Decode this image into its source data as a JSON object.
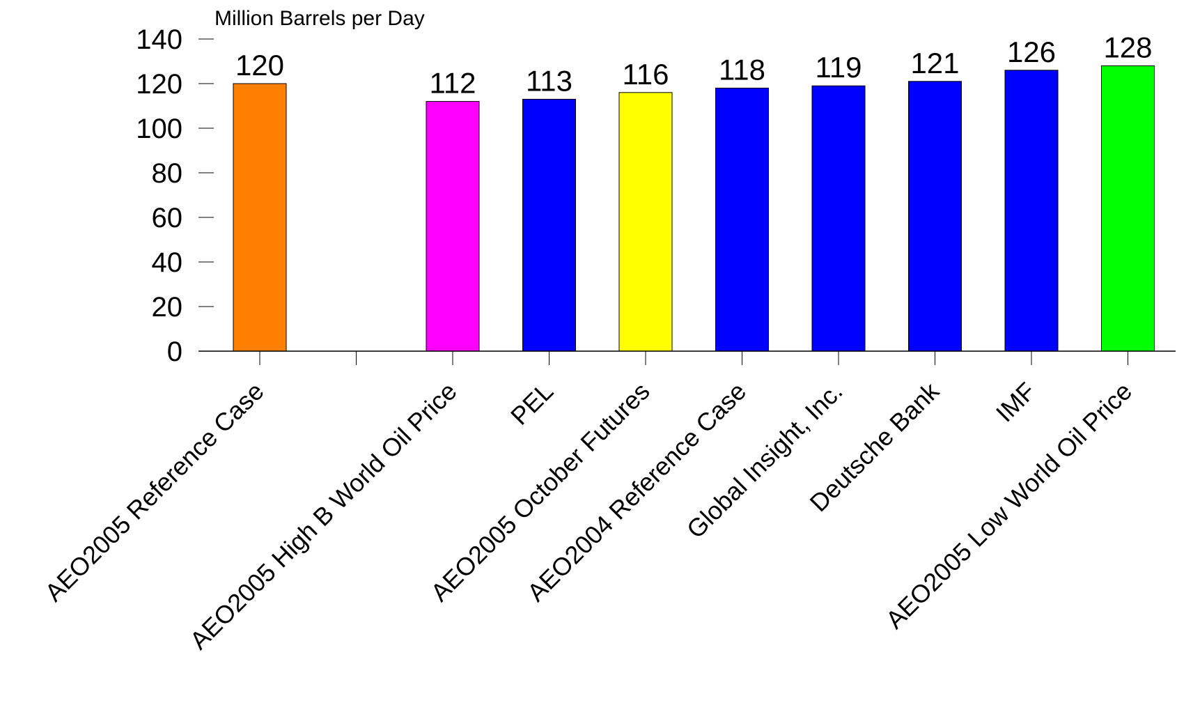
{
  "chart_data": {
    "type": "bar",
    "ylabel": "Million Barrels per Day",
    "ylim": [
      0,
      140
    ],
    "yticks": [
      0,
      20,
      40,
      60,
      80,
      100,
      120,
      140
    ],
    "grid": false,
    "categories": [
      "AEO2005 Reference Case",
      "",
      "AEO2005 High B World Oil Price",
      "PEL",
      "AEO2005 October Futures",
      "AEO2004 Reference Case",
      "Global Insight, Inc.",
      "Deutsche Bank",
      "IMF",
      "AEO2005 Low World Oil Price"
    ],
    "values": [
      120,
      null,
      112,
      113,
      116,
      118,
      119,
      121,
      126,
      128
    ],
    "data_labels": [
      "120",
      "",
      "112",
      "113",
      "116",
      "118",
      "119",
      "121",
      "126",
      "128"
    ],
    "colors": [
      "#ff8000",
      null,
      "#ff00ff",
      "#0000ff",
      "#ffff00",
      "#0000ff",
      "#0000ff",
      "#0000ff",
      "#0000ff",
      "#00ff00"
    ]
  }
}
